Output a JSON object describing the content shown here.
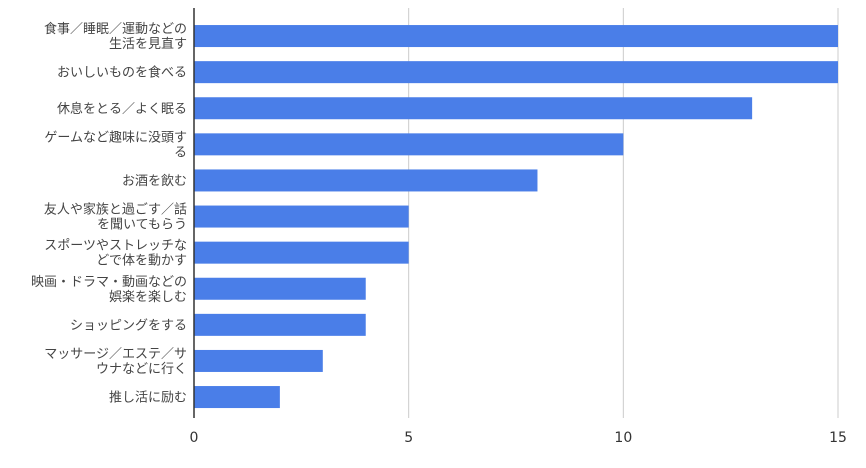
{
  "chart_data": {
    "type": "bar",
    "orientation": "horizontal",
    "categories": [
      [
        "食事／睡眠／運動などの",
        "生活を見直す"
      ],
      [
        "おいしいものを食べる"
      ],
      [
        "休息をとる／よく眠る"
      ],
      [
        "ゲームなど趣味に没頭す",
        "る"
      ],
      [
        "お酒を飲む"
      ],
      [
        "友人や家族と過ごす／話",
        "を聞いてもらう"
      ],
      [
        "スポーツやストレッチな",
        "どで体を動かす"
      ],
      [
        "映画・ドラマ・動画などの",
        "娯楽を楽しむ"
      ],
      [
        "ショッピングをする"
      ],
      [
        "マッサージ／エステ／サ",
        "ウナなどに行く"
      ],
      [
        "推し活に励む"
      ]
    ],
    "values": [
      15,
      15,
      13,
      10,
      8,
      5,
      5,
      4,
      4,
      3,
      2
    ],
    "xlim": [
      0,
      15
    ],
    "xticks": [
      0,
      5,
      10,
      15
    ],
    "grid": true,
    "legend": "none",
    "bar_color": "#4a7ee8",
    "grid_color": "#cccccc",
    "axis_color": "#333333"
  }
}
